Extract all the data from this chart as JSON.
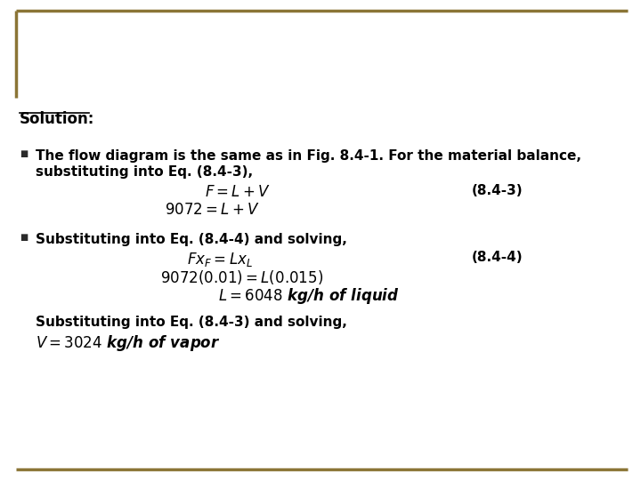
{
  "background_color": "#ffffff",
  "border_color": "#8B7536",
  "text_color": "#000000",
  "bullet_color": "#2a2a2a",
  "title": "Solution:",
  "bullet1_line1": "The flow diagram is the same as in Fig. 8.4-1. For the material balance,",
  "bullet1_line2": "substituting into Eq. (8.4-3),",
  "eq1_left": "$F = L + V$",
  "eq1_right": "(8.4-3)",
  "eq2": "$9072 = L + V$",
  "bullet2_line1": "Substituting into Eq. (8.4-4) and solving,",
  "eq3_left": "$F x_F = L x_L$",
  "eq3_right": "(8.4-4)",
  "eq4": "$9072(0.01) = L(0.015)$",
  "eq5": "$L = 6048$ kg/h of liquid",
  "footer1": "Substituting into Eq. (8.4-3) and solving,",
  "footer2": "$V = 3024$ kg/h of vapor"
}
